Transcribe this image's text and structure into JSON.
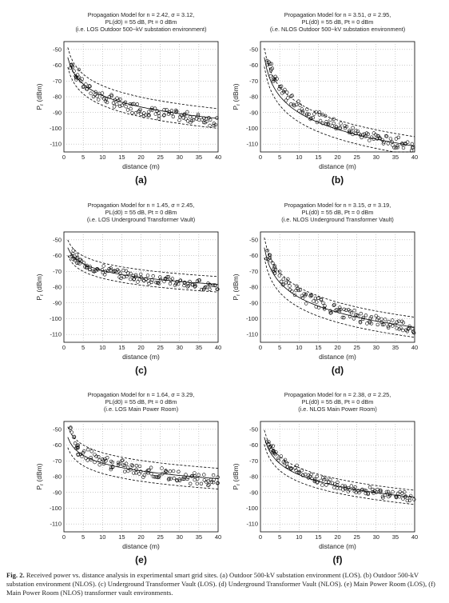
{
  "chart_data": [
    {
      "type": "scatter",
      "panel_label": "(a)",
      "title_lines": [
        "Propagation Model for n = 2.42, σ = 3.12,",
        "PL(d0) = 55 dB, Pt = 0 dBm",
        "(i.e. LOS Outdoor 500~kV substation environment)"
      ],
      "xlabel": "distance (m)",
      "ylabel_main": "P",
      "ylabel_sub": "r",
      "ylabel_unit": " (dBm)",
      "xlim": [
        0,
        40
      ],
      "ylim": [
        -115,
        -45
      ],
      "xticks": [
        0,
        5,
        10,
        15,
        20,
        25,
        30,
        35,
        40
      ],
      "yticks": [
        -50,
        -60,
        -70,
        -80,
        -90,
        -100,
        -110
      ],
      "grid": true,
      "model": {
        "n": 2.42,
        "sigma": 3.12,
        "pl_d0": 55,
        "pt": 0
      },
      "points": [
        [
          2,
          -60
        ],
        [
          2.5,
          -63
        ],
        [
          3,
          -65
        ],
        [
          3.5,
          -66
        ],
        [
          4,
          -68
        ],
        [
          5,
          -72
        ],
        [
          6,
          -74
        ],
        [
          7,
          -76
        ],
        [
          8,
          -78
        ],
        [
          9,
          -79
        ],
        [
          10,
          -80
        ],
        [
          11,
          -81
        ],
        [
          12,
          -82
        ],
        [
          13,
          -83
        ],
        [
          14,
          -84
        ],
        [
          15,
          -85
        ],
        [
          16,
          -86
        ],
        [
          17,
          -86
        ],
        [
          18,
          -87
        ],
        [
          19,
          -87
        ],
        [
          20,
          -88
        ],
        [
          21,
          -89
        ],
        [
          22,
          -89
        ],
        [
          23,
          -90
        ],
        [
          24,
          -90
        ],
        [
          25,
          -91
        ],
        [
          26,
          -91
        ],
        [
          27,
          -91
        ],
        [
          28,
          -92
        ],
        [
          29,
          -92
        ],
        [
          30,
          -92
        ],
        [
          31,
          -93
        ],
        [
          32,
          -93
        ],
        [
          33,
          -93
        ],
        [
          34,
          -94
        ],
        [
          35,
          -94
        ],
        [
          36,
          -94
        ],
        [
          37,
          -94
        ],
        [
          38,
          -95
        ],
        [
          39,
          -95
        ],
        [
          40,
          -95
        ]
      ]
    },
    {
      "type": "scatter",
      "panel_label": "(b)",
      "title_lines": [
        "Propagation Model for n = 3.51, σ = 2.95,",
        "PL(d0) = 55 dB, Pt = 0 dBm",
        "(i.e. NLOS Outdoor 500~kV substation environment)"
      ],
      "xlabel": "distance (m)",
      "ylabel_main": "P",
      "ylabel_sub": "r",
      "ylabel_unit": " (dBm)",
      "xlim": [
        0,
        40
      ],
      "ylim": [
        -115,
        -45
      ],
      "xticks": [
        0,
        5,
        10,
        15,
        20,
        25,
        30,
        35,
        40
      ],
      "yticks": [
        -50,
        -60,
        -70,
        -80,
        -90,
        -100,
        -110
      ],
      "grid": true,
      "model": {
        "n": 3.51,
        "sigma": 2.95,
        "pl_d0": 55,
        "pt": 0
      },
      "points": [
        [
          2,
          -58
        ],
        [
          2.5,
          -62
        ],
        [
          3,
          -65
        ],
        [
          3.5,
          -68
        ],
        [
          4,
          -70
        ],
        [
          5,
          -74
        ],
        [
          6,
          -77
        ],
        [
          7,
          -80
        ],
        [
          8,
          -82
        ],
        [
          9,
          -84
        ],
        [
          10,
          -86
        ],
        [
          11,
          -88
        ],
        [
          12,
          -89
        ],
        [
          13,
          -91
        ],
        [
          14,
          -92
        ],
        [
          15,
          -93
        ],
        [
          16,
          -94
        ],
        [
          17,
          -95
        ],
        [
          18,
          -96
        ],
        [
          19,
          -97
        ],
        [
          20,
          -98
        ],
        [
          21,
          -99
        ],
        [
          22,
          -100
        ],
        [
          23,
          -101
        ],
        [
          24,
          -102
        ],
        [
          25,
          -103
        ],
        [
          26,
          -103
        ],
        [
          27,
          -104
        ],
        [
          28,
          -105
        ],
        [
          29,
          -105
        ],
        [
          30,
          -106
        ],
        [
          31,
          -107
        ],
        [
          32,
          -107
        ],
        [
          33,
          -108
        ],
        [
          34,
          -108
        ],
        [
          35,
          -109
        ],
        [
          36,
          -109
        ],
        [
          37,
          -110
        ],
        [
          38,
          -110
        ],
        [
          39,
          -111
        ],
        [
          40,
          -111
        ]
      ]
    },
    {
      "type": "scatter",
      "panel_label": "(c)",
      "title_lines": [
        "Propagation Model for n = 1.45, σ = 2.45,",
        "PL(d0) = 55 dB, Pt = 0 dBm",
        "(i.e. LOS Underground Transformer Vault)"
      ],
      "xlabel": "distance (m)",
      "ylabel_main": "P",
      "ylabel_sub": "r",
      "ylabel_unit": " (dBm)",
      "xlim": [
        0,
        40
      ],
      "ylim": [
        -115,
        -45
      ],
      "xticks": [
        0,
        5,
        10,
        15,
        20,
        25,
        30,
        35,
        40
      ],
      "yticks": [
        -50,
        -60,
        -70,
        -80,
        -90,
        -100,
        -110
      ],
      "grid": true,
      "model": {
        "n": 1.45,
        "sigma": 2.45,
        "pl_d0": 55,
        "pt": 0
      },
      "points": [
        [
          2,
          -59
        ],
        [
          2.5,
          -61
        ],
        [
          3,
          -62
        ],
        [
          3.5,
          -63
        ],
        [
          4,
          -64
        ],
        [
          5,
          -65
        ],
        [
          6,
          -66
        ],
        [
          7,
          -67
        ],
        [
          8,
          -68
        ],
        [
          9,
          -69
        ],
        [
          10,
          -69
        ],
        [
          11,
          -70
        ],
        [
          12,
          -70
        ],
        [
          13,
          -71
        ],
        [
          14,
          -71
        ],
        [
          15,
          -72
        ],
        [
          16,
          -72
        ],
        [
          17,
          -73
        ],
        [
          18,
          -73
        ],
        [
          19,
          -74
        ],
        [
          20,
          -74
        ],
        [
          21,
          -74
        ],
        [
          22,
          -75
        ],
        [
          23,
          -75
        ],
        [
          24,
          -75
        ],
        [
          25,
          -76
        ],
        [
          26,
          -76
        ],
        [
          27,
          -76
        ],
        [
          28,
          -77
        ],
        [
          29,
          -77
        ],
        [
          30,
          -77
        ],
        [
          31,
          -77
        ],
        [
          32,
          -78
        ],
        [
          33,
          -78
        ],
        [
          34,
          -78
        ],
        [
          35,
          -78
        ],
        [
          36,
          -79
        ],
        [
          37,
          -79
        ],
        [
          38,
          -79
        ],
        [
          39,
          -79
        ],
        [
          40,
          -80
        ]
      ]
    },
    {
      "type": "scatter",
      "panel_label": "(d)",
      "title_lines": [
        "Propagation Model for n = 3.15, σ = 3.19,",
        "PL(d0) = 55 dB, Pt = 0 dBm",
        "(i.e. NLOS Underground Transformer Vault)"
      ],
      "xlabel": "distance (m)",
      "ylabel_main": "P",
      "ylabel_sub": "r",
      "ylabel_unit": " (dBm)",
      "xlim": [
        0,
        40
      ],
      "ylim": [
        -115,
        -45
      ],
      "xticks": [
        0,
        5,
        10,
        15,
        20,
        25,
        30,
        35,
        40
      ],
      "yticks": [
        -50,
        -60,
        -70,
        -80,
        -90,
        -100,
        -110
      ],
      "grid": true,
      "model": {
        "n": 3.15,
        "sigma": 3.19,
        "pl_d0": 55,
        "pt": 0
      },
      "points": [
        [
          2,
          -60
        ],
        [
          2.5,
          -63
        ],
        [
          3,
          -66
        ],
        [
          3.5,
          -68
        ],
        [
          4,
          -70
        ],
        [
          5,
          -73
        ],
        [
          6,
          -76
        ],
        [
          7,
          -78
        ],
        [
          8,
          -80
        ],
        [
          9,
          -82
        ],
        [
          10,
          -84
        ],
        [
          11,
          -85
        ],
        [
          12,
          -87
        ],
        [
          13,
          -88
        ],
        [
          14,
          -89
        ],
        [
          15,
          -90
        ],
        [
          16,
          -91
        ],
        [
          17,
          -92
        ],
        [
          18,
          -93
        ],
        [
          19,
          -94
        ],
        [
          20,
          -95
        ],
        [
          21,
          -96
        ],
        [
          22,
          -96
        ],
        [
          23,
          -97
        ],
        [
          24,
          -98
        ],
        [
          25,
          -98
        ],
        [
          26,
          -99
        ],
        [
          27,
          -100
        ],
        [
          28,
          -100
        ],
        [
          29,
          -101
        ],
        [
          30,
          -101
        ],
        [
          31,
          -102
        ],
        [
          32,
          -102
        ],
        [
          33,
          -103
        ],
        [
          34,
          -103
        ],
        [
          35,
          -104
        ],
        [
          36,
          -104
        ],
        [
          37,
          -104
        ],
        [
          38,
          -105
        ],
        [
          39,
          -105
        ],
        [
          40,
          -106
        ]
      ]
    },
    {
      "type": "scatter",
      "panel_label": "(e)",
      "title_lines": [
        "Propagation Model for n = 1.64, σ = 3.29,",
        "PL(d0) = 55 dB, Pt = 0 dBm",
        "(i.e. LOS Main Power Room)"
      ],
      "xlabel": "distance (m)",
      "ylabel_main": "P",
      "ylabel_sub": "r",
      "ylabel_unit": " (dBm)",
      "xlim": [
        0,
        40
      ],
      "ylim": [
        -115,
        -45
      ],
      "xticks": [
        0,
        5,
        10,
        15,
        20,
        25,
        30,
        35,
        40
      ],
      "yticks": [
        -50,
        -60,
        -70,
        -80,
        -90,
        -100,
        -110
      ],
      "grid": true,
      "model": {
        "n": 1.64,
        "sigma": 3.29,
        "pl_d0": 55,
        "pt": 0
      },
      "points": [
        [
          2,
          -52
        ],
        [
          2.5,
          -57
        ],
        [
          3,
          -60
        ],
        [
          3.5,
          -62
        ],
        [
          4,
          -63
        ],
        [
          5,
          -65
        ],
        [
          6,
          -66
        ],
        [
          7,
          -67
        ],
        [
          8,
          -68
        ],
        [
          9,
          -69
        ],
        [
          10,
          -70
        ],
        [
          11,
          -71
        ],
        [
          12,
          -72
        ],
        [
          13,
          -72
        ],
        [
          14,
          -73
        ],
        [
          15,
          -73
        ],
        [
          16,
          -74
        ],
        [
          17,
          -75
        ],
        [
          18,
          -75
        ],
        [
          19,
          -76
        ],
        [
          20,
          -76
        ],
        [
          21,
          -77
        ],
        [
          22,
          -77
        ],
        [
          23,
          -77
        ],
        [
          24,
          -78
        ],
        [
          25,
          -78
        ],
        [
          26,
          -78
        ],
        [
          27,
          -79
        ],
        [
          28,
          -79
        ],
        [
          29,
          -79
        ],
        [
          30,
          -80
        ],
        [
          31,
          -80
        ],
        [
          32,
          -80
        ],
        [
          33,
          -81
        ],
        [
          34,
          -81
        ],
        [
          35,
          -81
        ],
        [
          36,
          -81
        ],
        [
          37,
          -82
        ],
        [
          38,
          -82
        ],
        [
          39,
          -82
        ],
        [
          40,
          -82
        ]
      ]
    },
    {
      "type": "scatter",
      "panel_label": "(f)",
      "title_lines": [
        "Propagation Model for n = 2.38, σ = 2.25,",
        "PL(d0) = 55 dB, Pt = 0 dBm",
        "(i.e. NLOS Main Power Room)"
      ],
      "xlabel": "distance (m)",
      "ylabel_main": "P",
      "ylabel_sub": "r",
      "ylabel_unit": " (dBm)",
      "xlim": [
        0,
        40
      ],
      "ylim": [
        -115,
        -45
      ],
      "xticks": [
        0,
        5,
        10,
        15,
        20,
        25,
        30,
        35,
        40
      ],
      "yticks": [
        -50,
        -60,
        -70,
        -80,
        -90,
        -100,
        -110
      ],
      "grid": true,
      "model": {
        "n": 2.38,
        "sigma": 2.25,
        "pl_d0": 55,
        "pt": 0
      },
      "points": [
        [
          2,
          -58
        ],
        [
          2.5,
          -61
        ],
        [
          3,
          -63
        ],
        [
          3.5,
          -64
        ],
        [
          4,
          -66
        ],
        [
          5,
          -68
        ],
        [
          6,
          -70
        ],
        [
          7,
          -72
        ],
        [
          8,
          -74
        ],
        [
          9,
          -75
        ],
        [
          10,
          -77
        ],
        [
          11,
          -78
        ],
        [
          12,
          -79
        ],
        [
          13,
          -80
        ],
        [
          14,
          -81
        ],
        [
          15,
          -82
        ],
        [
          16,
          -83
        ],
        [
          17,
          -83
        ],
        [
          18,
          -84
        ],
        [
          19,
          -85
        ],
        [
          20,
          -85
        ],
        [
          21,
          -86
        ],
        [
          22,
          -86
        ],
        [
          23,
          -87
        ],
        [
          24,
          -87
        ],
        [
          25,
          -88
        ],
        [
          26,
          -88
        ],
        [
          27,
          -89
        ],
        [
          28,
          -89
        ],
        [
          29,
          -90
        ],
        [
          30,
          -90
        ],
        [
          31,
          -90
        ],
        [
          32,
          -91
        ],
        [
          33,
          -91
        ],
        [
          34,
          -91
        ],
        [
          35,
          -92
        ],
        [
          36,
          -92
        ],
        [
          37,
          -92
        ],
        [
          38,
          -93
        ],
        [
          39,
          -93
        ],
        [
          40,
          -93
        ]
      ]
    }
  ],
  "caption": {
    "label": "Fig. 2.",
    "text": "Received power vs. distance analysis in experimental smart grid sites. (a) Outdoor 500-kV substation environment (LOS). (b) Outdoor 500-kV substation environment (NLOS). (c) Underground Transformer Vault (LOS). (d) Underground Transformer Vault (NLOS). (e) Main Power Room (LOS), (f) Main Power Room (NLOS) transformer vault environments."
  }
}
